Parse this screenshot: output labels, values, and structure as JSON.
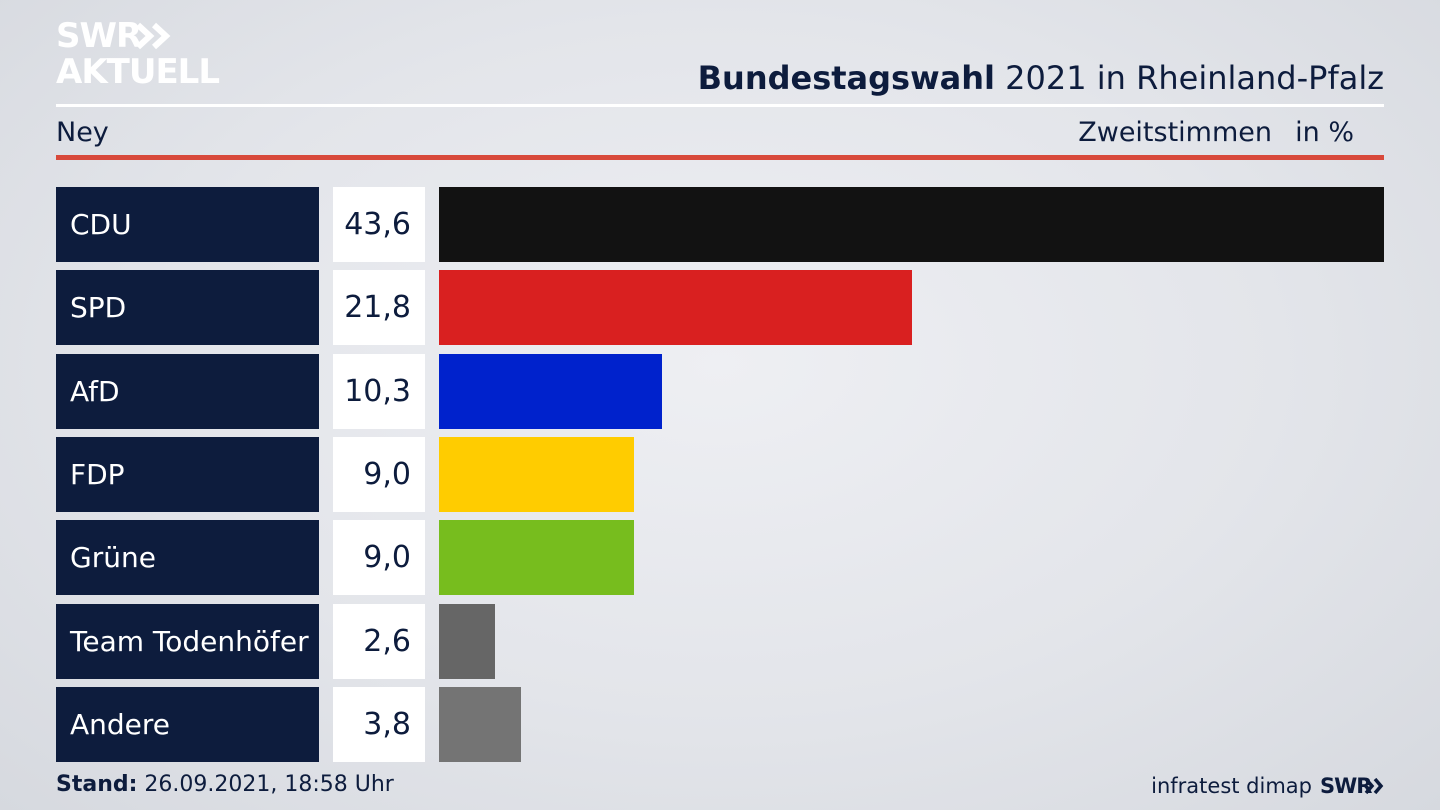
{
  "brand": {
    "line1": "SWR",
    "line2": "AKTUELL",
    "footer_logo": "SWR"
  },
  "header": {
    "title_bold": "Bundestagswahl",
    "title_rest": " 2021 in Rheinland-Pfalz",
    "subhead": "Ney",
    "metric": "Zweitstimmen",
    "unit": "in %"
  },
  "chart_data": {
    "type": "bar",
    "orientation": "horizontal",
    "title": "Bundestagswahl 2021 in Rheinland-Pfalz",
    "categories": [
      "CDU",
      "SPD",
      "AfD",
      "FDP",
      "Grüne",
      "Team Todenhöfer",
      "Andere"
    ],
    "values": [
      43.6,
      21.8,
      10.3,
      9.0,
      9.0,
      2.6,
      3.8
    ],
    "value_labels": [
      "43,6",
      "21,8",
      "10,3",
      "9,0",
      "9,0",
      "2,6",
      "3,8"
    ],
    "colors": [
      "#121212",
      "#d92020",
      "#0022cc",
      "#ffcc00",
      "#77bd1e",
      "#666666",
      "#747474"
    ],
    "xlim": [
      0,
      43.6
    ],
    "grid": false
  },
  "footer": {
    "stand_label": "Stand:",
    "stand_value": " 26.09.2021, 18:58 Uhr",
    "source": "infratest dimap"
  }
}
